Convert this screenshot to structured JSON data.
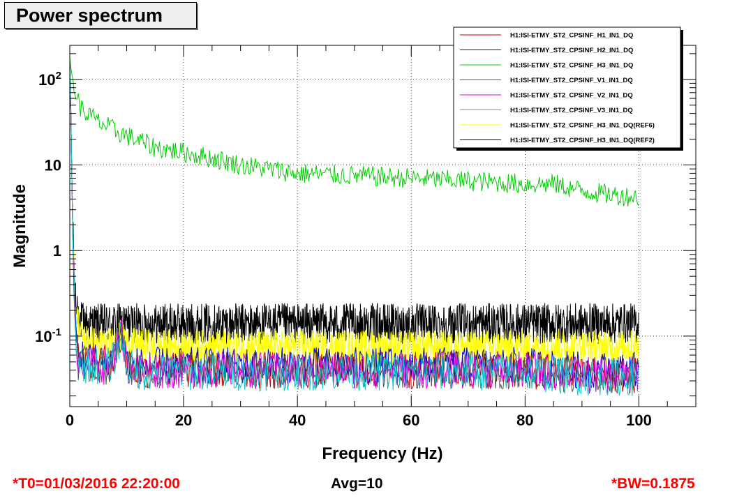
{
  "title": "Power spectrum",
  "footer": {
    "t0": "*T0=01/03/2016 22:20:00",
    "avg": "Avg=10",
    "bw": "*BW=0.1875"
  },
  "chart_data": {
    "type": "line",
    "title": "Power spectrum",
    "xlabel": "Frequency (Hz)",
    "ylabel": "Magnitude",
    "xlim": [
      0,
      110
    ],
    "ylim": [
      0.015,
      250
    ],
    "yscale": "log",
    "grid": true,
    "legend_position": "top-right",
    "x_ticks": [
      0,
      20,
      40,
      60,
      80,
      100
    ],
    "x_tick_labels": [
      "0",
      "20",
      "40",
      "60",
      "80",
      "100"
    ],
    "y_ticks": [
      0.1,
      1,
      10,
      100
    ],
    "y_tick_labels": [
      {
        "base": "10",
        "exp": "-1"
      },
      {
        "base": "1",
        "exp": ""
      },
      {
        "base": "10",
        "exp": ""
      },
      {
        "base": "10",
        "exp": "2"
      }
    ],
    "series": [
      {
        "name": "H1:ISI-ETMY_ST2_CPSINF_H1_IN1_DQ",
        "color": "#cc0000",
        "x": [
          0,
          0.2,
          0.5,
          1,
          1.5,
          2,
          3,
          5,
          7,
          8,
          9,
          10,
          12,
          15,
          20,
          30,
          40,
          50,
          60,
          70,
          80,
          90,
          100
        ],
        "y": [
          150,
          40,
          1.5,
          0.15,
          0.06,
          0.055,
          0.05,
          0.05,
          0.05,
          0.06,
          0.1,
          0.05,
          0.04,
          0.04,
          0.04,
          0.04,
          0.04,
          0.04,
          0.04,
          0.04,
          0.04,
          0.035,
          0.035
        ]
      },
      {
        "name": "H1:ISI-ETMY_ST2_CPSINF_H2_IN1_DQ",
        "color": "#0000cc",
        "x": [
          0,
          0.2,
          0.5,
          1,
          1.5,
          2,
          3,
          5,
          7,
          8,
          9,
          10,
          12,
          15,
          20,
          30,
          40,
          50,
          60,
          70,
          80,
          90,
          100
        ],
        "y": [
          150,
          40,
          1.5,
          0.15,
          0.06,
          0.06,
          0.055,
          0.05,
          0.05,
          0.07,
          0.12,
          0.05,
          0.045,
          0.045,
          0.045,
          0.045,
          0.045,
          0.045,
          0.045,
          0.045,
          0.045,
          0.04,
          0.04
        ]
      },
      {
        "name": "H1:ISI-ETMY_ST2_CPSINF_H3_IN1_DQ",
        "color": "#00cc00",
        "x": [
          0,
          0.3,
          1,
          2,
          3,
          5,
          8,
          10,
          15,
          20,
          25,
          30,
          40,
          50,
          60,
          70,
          80,
          85,
          90,
          95,
          100
        ],
        "y": [
          180,
          120,
          70,
          45,
          40,
          32,
          25,
          22,
          16,
          14,
          12,
          10,
          8,
          7.5,
          7,
          6.5,
          6,
          6,
          5,
          4.5,
          4.2
        ]
      },
      {
        "name": "H1:ISI-ETMY_ST2_CPSINF_V1_IN1_DQ",
        "color": "#555555",
        "x": [
          0,
          0.2,
          0.5,
          1,
          1.5,
          2,
          3,
          5,
          7,
          8,
          9,
          10,
          12,
          15,
          20,
          30,
          40,
          50,
          60,
          70,
          80,
          90,
          100
        ],
        "y": [
          150,
          40,
          1.5,
          0.12,
          0.05,
          0.05,
          0.045,
          0.045,
          0.045,
          0.06,
          0.12,
          0.045,
          0.04,
          0.04,
          0.04,
          0.04,
          0.04,
          0.04,
          0.04,
          0.04,
          0.04,
          0.035,
          0.035
        ]
      },
      {
        "name": "H1:ISI-ETMY_ST2_CPSINF_V2_IN1_DQ",
        "color": "#dd00dd",
        "x": [
          0,
          0.2,
          0.5,
          1,
          1.5,
          2,
          3,
          5,
          7,
          8,
          9,
          10,
          12,
          15,
          20,
          30,
          40,
          50,
          60,
          70,
          80,
          90,
          100
        ],
        "y": [
          150,
          40,
          1.5,
          0.13,
          0.055,
          0.05,
          0.05,
          0.045,
          0.045,
          0.065,
          0.13,
          0.045,
          0.04,
          0.04,
          0.04,
          0.04,
          0.04,
          0.04,
          0.04,
          0.04,
          0.04,
          0.035,
          0.035
        ]
      },
      {
        "name": "H1:ISI-ETMY_ST2_CPSINF_V3_IN1_DQ",
        "color": "#00cccc",
        "x": [
          0,
          0.2,
          0.5,
          1,
          1.5,
          2,
          3,
          5,
          7,
          8,
          9,
          10,
          12,
          15,
          20,
          30,
          40,
          50,
          60,
          70,
          80,
          90,
          100
        ],
        "y": [
          150,
          40,
          1.5,
          0.12,
          0.05,
          0.05,
          0.045,
          0.045,
          0.045,
          0.06,
          0.11,
          0.045,
          0.038,
          0.038,
          0.038,
          0.038,
          0.038,
          0.038,
          0.038,
          0.038,
          0.038,
          0.033,
          0.033
        ]
      },
      {
        "name": "H1:ISI-ETMY_ST2_CPSINF_H3_IN1_DQ(REF6)",
        "color": "#ffff00",
        "x": [
          0,
          0.2,
          0.5,
          1,
          2,
          3,
          5,
          7,
          8,
          9,
          10,
          15,
          20,
          30,
          40,
          50,
          60,
          70,
          80,
          90,
          100
        ],
        "y": [
          150,
          40,
          2,
          0.2,
          0.1,
          0.09,
          0.08,
          0.08,
          0.09,
          0.1,
          0.08,
          0.075,
          0.075,
          0.075,
          0.075,
          0.075,
          0.075,
          0.075,
          0.075,
          0.075,
          0.075
        ]
      },
      {
        "name": "H1:ISI-ETMY_ST2_CPSINF_H3_IN1_DQ(REF2)",
        "color": "#000000",
        "x": [
          0,
          0.2,
          0.5,
          1,
          2,
          3,
          5,
          8,
          10,
          20,
          30,
          40,
          50,
          60,
          70,
          80,
          90,
          100
        ],
        "y": [
          150,
          40,
          2,
          0.25,
          0.15,
          0.14,
          0.14,
          0.14,
          0.14,
          0.14,
          0.14,
          0.14,
          0.14,
          0.14,
          0.14,
          0.14,
          0.14,
          0.14
        ]
      }
    ]
  }
}
